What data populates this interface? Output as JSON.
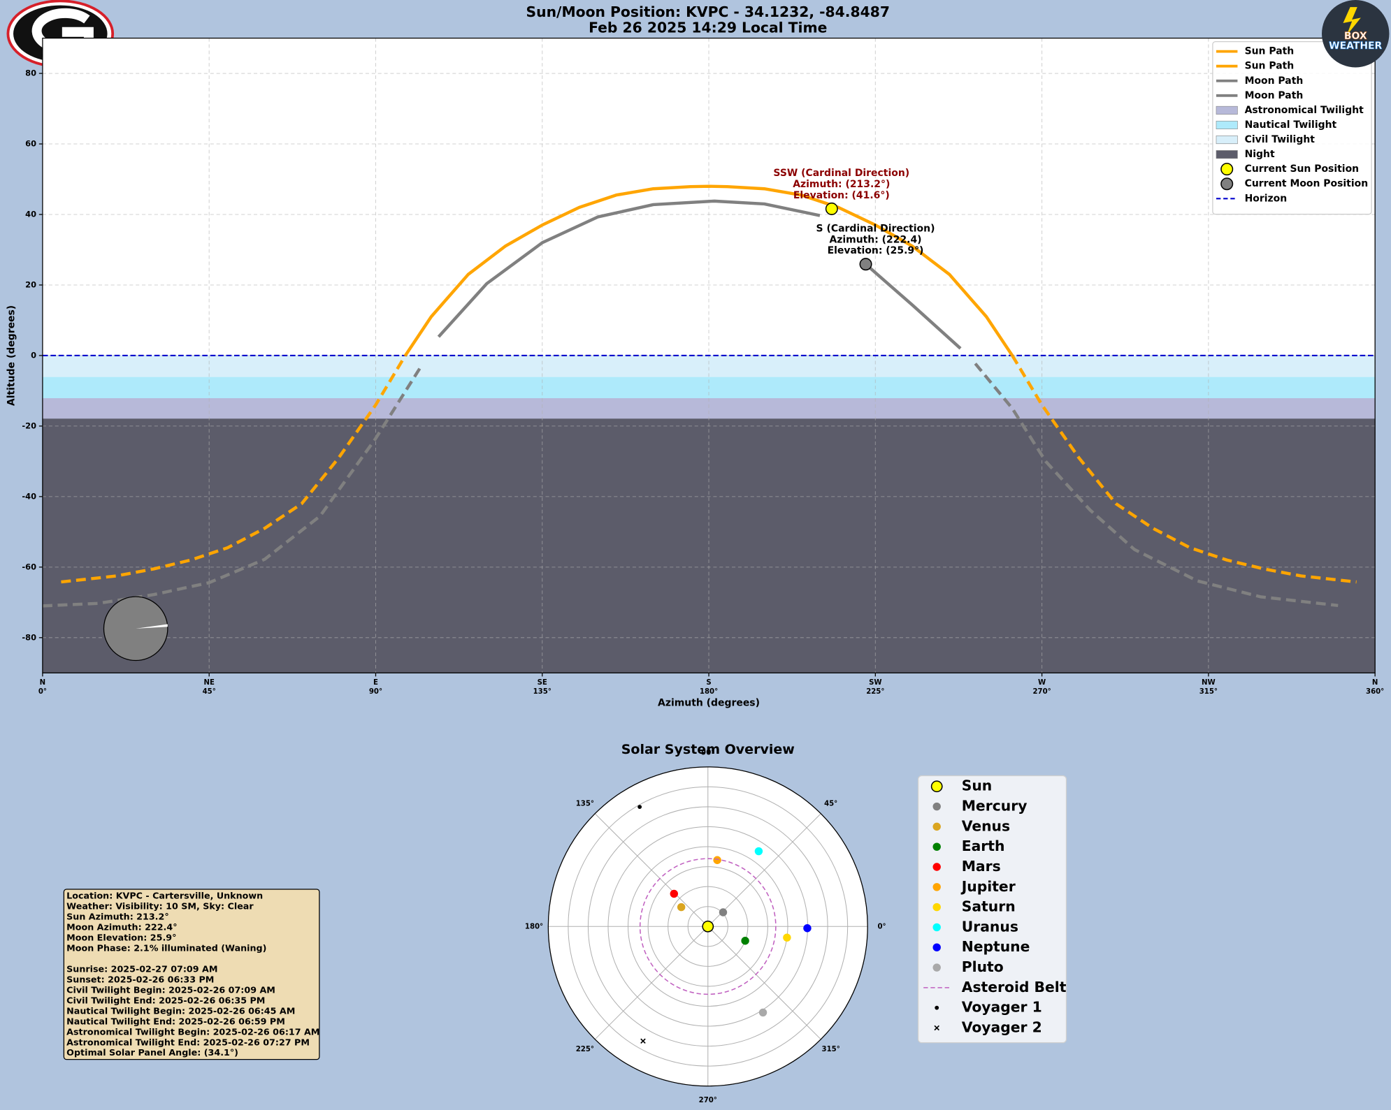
{
  "chart_data": [
    {
      "type": "line",
      "title": [
        "Sun/Moon Position: KVPC - 34.1232, -84.8487",
        "Feb 26 2025 14:29 Local Time"
      ],
      "x_label": "Azimuth (degrees)",
      "y_label": "Altitude (degrees)",
      "xlim": [
        0,
        360
      ],
      "ylim": [
        -90,
        90
      ],
      "xticks": [
        {
          "value": 0,
          "label": "0°"
        },
        {
          "value": 45,
          "label": "45°"
        },
        {
          "value": 90,
          "label": "90°"
        },
        {
          "value": 135,
          "label": "135°"
        },
        {
          "value": 180,
          "label": "180°"
        },
        {
          "value": 225,
          "label": "225°"
        },
        {
          "value": 270,
          "label": "270°"
        },
        {
          "value": 315,
          "label": "315°"
        },
        {
          "value": 360,
          "label": "360°"
        }
      ],
      "xtick_directions": [
        "N",
        "NE",
        "E",
        "SE",
        "S",
        "SW",
        "W",
        "NW",
        "N"
      ],
      "yticks": [
        -80,
        -60,
        -40,
        -20,
        0,
        20,
        40,
        60,
        80
      ],
      "grid": true,
      "legend": "upper right",
      "series": [
        {
          "name": "Sun Path",
          "color": "#ffa500",
          "style": "solid",
          "x": [
            98,
            105,
            115,
            125,
            135,
            145,
            155,
            165,
            175,
            180,
            185,
            195,
            205,
            215,
            225,
            235,
            245,
            255,
            262
          ],
          "values": [
            0,
            11,
            23,
            31,
            37,
            42,
            45.5,
            47.3,
            47.9,
            48,
            47.9,
            47.3,
            45.5,
            42,
            37,
            31,
            23,
            11,
            0
          ]
        },
        {
          "name": "Sun Path",
          "color": "#ffa500",
          "style": "dashed",
          "x": [
            5,
            20,
            30,
            40,
            50,
            60,
            70,
            80,
            90,
            98,
            180,
            262,
            270,
            280,
            290,
            300,
            310,
            320,
            330,
            340,
            355
          ],
          "values": [
            -64.2,
            -62.5,
            -60.5,
            -58,
            -54.5,
            -49,
            -42,
            -29,
            -14,
            0,
            null,
            0,
            -14,
            -29,
            -42,
            -49,
            -54.5,
            -58,
            -60.5,
            -62.5,
            -64.2
          ]
        },
        {
          "name": "Moon Path",
          "color": "#808080",
          "style": "solid",
          "x": [
            107,
            120,
            135,
            150,
            165,
            181.5,
            195,
            210,
            216,
            222.4,
            235,
            248
          ],
          "values": [
            5.3,
            20.4,
            32,
            39.3,
            42.8,
            43.8,
            43,
            39.7,
            null,
            25.9,
            14.3,
            2
          ]
        },
        {
          "name": "Moon Path",
          "color": "#808080",
          "style": "dashed",
          "x": [
            0,
            15,
            30,
            45,
            60,
            75,
            90,
            102,
            180,
            252,
            262,
            271,
            283,
            295,
            312,
            329,
            350
          ],
          "values": [
            -71,
            -70.3,
            -67.8,
            -64.4,
            -57.8,
            -45.5,
            -23.5,
            -3.5,
            null,
            -2.3,
            -15,
            -30,
            -43.8,
            -55,
            -63.9,
            -68.4,
            -70.9
          ]
        }
      ],
      "bands": [
        {
          "name": "Astronomical Twilight",
          "color": "#b7b9d9",
          "range": [
            -18,
            -12
          ]
        },
        {
          "name": "Nautical Twilight",
          "color": "#aeeafb",
          "range": [
            -12,
            -6
          ]
        },
        {
          "name": "Civil Twilight",
          "color": "#d8effa",
          "range": [
            -6,
            0
          ]
        },
        {
          "name": "Night",
          "color": "#5c5c6a",
          "range": [
            -90,
            -18
          ]
        }
      ],
      "markers": [
        {
          "name": "Current Sun Position",
          "color": "#ffff00",
          "x": 213.2,
          "y": 41.6,
          "annotation_color": "#8b0000",
          "annotation": [
            "SSW (Cardinal Direction)",
            "Azimuth: (213.2°)",
            "Elevation: (41.6°)"
          ]
        },
        {
          "name": "Current Moon Position",
          "color": "#808080",
          "x": 222.4,
          "y": 25.9,
          "annotation_color": "#000000",
          "annotation": [
            "S (Cardinal Direction)",
            "Azimuth: (222.4)",
            "Elevation: (25.9°)"
          ]
        }
      ],
      "horizon": {
        "name": "Horizon",
        "value": 0,
        "color": "#0000cd"
      }
    },
    {
      "type": "polar",
      "title": "Solar System Overview",
      "rlim": [
        0,
        8
      ],
      "rticks": [
        1,
        2,
        3,
        4,
        5,
        6,
        7,
        8
      ],
      "thetaticks": [
        {
          "value": 0,
          "label": "0°"
        },
        {
          "value": 45,
          "label": "45°"
        },
        {
          "value": 90,
          "label": "90°"
        },
        {
          "value": 135,
          "label": "135°"
        },
        {
          "value": 180,
          "label": "180°"
        },
        {
          "value": 225,
          "label": "225°"
        },
        {
          "value": 270,
          "label": "270°"
        },
        {
          "value": 315,
          "label": "315°"
        }
      ],
      "series": [
        {
          "name": "Sun",
          "color": "#ffff00",
          "marker": "large",
          "r": 0,
          "theta": 0
        },
        {
          "name": "Mercury",
          "color": "#808080",
          "marker": "dot",
          "r": 1.04,
          "theta": 43
        },
        {
          "name": "Venus",
          "color": "#daa520",
          "marker": "dot",
          "r": 1.65,
          "theta": 144
        },
        {
          "name": "Earth",
          "color": "#008000",
          "marker": "dot",
          "r": 2.0,
          "theta": 339
        },
        {
          "name": "Mars",
          "color": "#ff0000",
          "marker": "dot",
          "r": 2.36,
          "theta": 136
        },
        {
          "name": "Jupiter",
          "color": "#ffa500",
          "marker": "dot",
          "r": 3.36,
          "theta": 82
        },
        {
          "name": "Saturn",
          "color": "#ffd700",
          "marker": "dot",
          "r": 4.0,
          "theta": 352
        },
        {
          "name": "Uranus",
          "color": "#00ffff",
          "marker": "dot",
          "r": 4.55,
          "theta": 56
        },
        {
          "name": "Neptune",
          "color": "#0000ff",
          "marker": "dot",
          "r": 4.98,
          "theta": 359
        },
        {
          "name": "Pluto",
          "color": "#a9a9a9",
          "marker": "dot",
          "r": 5.12,
          "theta": 302.6
        },
        {
          "name": "Asteroid Belt",
          "color": "#c060c0",
          "marker": "ring",
          "r": 3.4
        },
        {
          "name": "Voyager 1",
          "color": "#000000",
          "marker": "small",
          "r": 6.9,
          "theta": 119.7
        },
        {
          "name": "Voyager 2",
          "color": "#000000",
          "marker": "cross",
          "r": 6.6,
          "theta": 240.5
        }
      ]
    }
  ],
  "info_box": {
    "lines": [
      "Location: KVPC - Cartersville, Unknown",
      "Weather: Visibility: 10 SM, Sky: Clear",
      "Sun Azimuth: 213.2°",
      "Moon Azimuth: 222.4°",
      "Moon Elevation: 25.9°",
      "Moon Phase: 2.1% illuminated (Waning)"
    ],
    "times": [
      "Sunrise: 2025-02-27 07:09 AM",
      "Sunset: 2025-02-26 06:33 PM",
      "Civil Twilight Begin: 2025-02-26 07:09 AM",
      "Civil Twilight End: 2025-02-26 06:35 PM",
      "Nautical Twilight Begin: 2025-02-26 06:45 AM",
      "Nautical Twilight End: 2025-02-26 06:59 PM",
      "Astronomical Twilight Begin: 2025-02-26 06:17 AM",
      "Astronomical Twilight End: 2025-02-26 07:27 PM",
      "Optimal Solar Panel Angle: (34.1°)"
    ]
  },
  "branding": [
    "BOX",
    "WEATHER"
  ]
}
